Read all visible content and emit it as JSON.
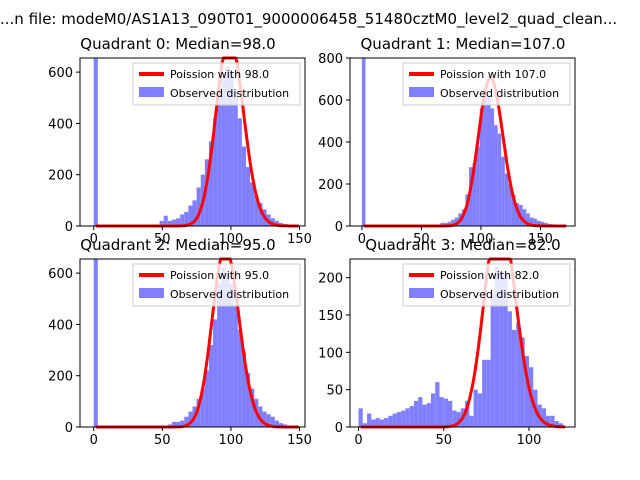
{
  "figure_title": "...n file: modeM0/AS1A13_090T01_9000006458_51480cztM0_level2_quad_clean...",
  "colors": {
    "hist": "#8080ff",
    "poisson": "#ff0000",
    "axes": "#000000"
  },
  "chart_data": [
    {
      "type": "bar",
      "title": "Quadrant 0: Median=98.0",
      "xlim": [
        -10,
        154
      ],
      "ylim": [
        0,
        655
      ],
      "xticks": [
        0,
        50,
        100,
        150
      ],
      "yticks": [
        0,
        200,
        400,
        600
      ],
      "bin_width": 3,
      "series": [
        {
          "name": "Observed distribution",
          "bins_x": [
            0,
            3,
            6,
            9,
            12,
            15,
            18,
            21,
            24,
            27,
            30,
            33,
            36,
            39,
            42,
            45,
            48,
            51,
            54,
            57,
            60,
            63,
            66,
            69,
            72,
            75,
            78,
            81,
            84,
            87,
            90,
            93,
            96,
            99,
            102,
            105,
            108,
            111,
            114,
            117,
            120,
            123,
            126,
            129,
            132,
            135,
            138,
            141,
            144
          ],
          "values": [
            655,
            0,
            0,
            0,
            0,
            0,
            0,
            0,
            0,
            0,
            0,
            0,
            0,
            0,
            0,
            0,
            20,
            40,
            20,
            25,
            30,
            45,
            55,
            80,
            100,
            150,
            200,
            260,
            330,
            420,
            510,
            580,
            620,
            600,
            520,
            420,
            310,
            230,
            170,
            120,
            90,
            65,
            45,
            30,
            20,
            12,
            8,
            5,
            3
          ]
        },
        {
          "name": "Poission with 98.0",
          "lambda": 98.0,
          "x_range": [
            0,
            148
          ]
        }
      ]
    },
    {
      "type": "bar",
      "title": "Quadrant 1: Median=107.0",
      "xlim": [
        -10,
        179
      ],
      "ylim": [
        0,
        800
      ],
      "xticks": [
        0,
        50,
        100,
        150
      ],
      "yticks": [
        0,
        200,
        400,
        600,
        800
      ],
      "bin_width": 3,
      "series": [
        {
          "name": "Observed distribution",
          "bins_x": [
            0,
            3,
            6,
            9,
            12,
            15,
            18,
            21,
            24,
            27,
            30,
            33,
            36,
            39,
            42,
            45,
            48,
            51,
            54,
            57,
            60,
            63,
            66,
            69,
            72,
            75,
            78,
            81,
            84,
            87,
            90,
            93,
            96,
            99,
            102,
            105,
            108,
            111,
            114,
            117,
            120,
            123,
            126,
            129,
            132,
            135,
            138,
            141,
            144,
            147,
            150,
            153,
            156,
            159,
            162,
            165,
            168
          ],
          "values": [
            800,
            0,
            0,
            0,
            0,
            0,
            0,
            0,
            0,
            0,
            0,
            0,
            0,
            0,
            0,
            0,
            0,
            0,
            0,
            0,
            0,
            0,
            15,
            15,
            20,
            30,
            40,
            60,
            80,
            150,
            280,
            300,
            380,
            560,
            620,
            620,
            560,
            480,
            440,
            330,
            250,
            200,
            150,
            110,
            100,
            80,
            60,
            40,
            35,
            25,
            20,
            15,
            10,
            8,
            5,
            3,
            2
          ]
        },
        {
          "name": "Poission with 107.0",
          "lambda": 107.0,
          "x_range": [
            0,
            170
          ]
        }
      ]
    },
    {
      "type": "bar",
      "title": "Quadrant 2: Median=95.0",
      "xlim": [
        -10,
        154
      ],
      "ylim": [
        0,
        655
      ],
      "xticks": [
        0,
        50,
        100,
        150
      ],
      "yticks": [
        0,
        200,
        400,
        600
      ],
      "bin_width": 3,
      "series": [
        {
          "name": "Observed distribution",
          "bins_x": [
            0,
            3,
            6,
            9,
            12,
            15,
            18,
            21,
            24,
            27,
            30,
            33,
            36,
            39,
            42,
            45,
            48,
            51,
            54,
            57,
            60,
            63,
            66,
            69,
            72,
            75,
            78,
            81,
            84,
            87,
            90,
            93,
            96,
            99,
            102,
            105,
            108,
            111,
            114,
            117,
            120,
            123,
            126,
            129,
            132,
            135,
            138,
            141,
            144
          ],
          "values": [
            655,
            0,
            0,
            0,
            0,
            0,
            0,
            0,
            0,
            0,
            0,
            0,
            0,
            0,
            0,
            0,
            0,
            0,
            10,
            20,
            20,
            25,
            40,
            60,
            80,
            110,
            150,
            220,
            320,
            420,
            560,
            620,
            600,
            560,
            470,
            380,
            290,
            210,
            150,
            110,
            80,
            60,
            50,
            40,
            25,
            15,
            10,
            6,
            3
          ]
        },
        {
          "name": "Poission with 95.0",
          "lambda": 95.0,
          "x_range": [
            0,
            148
          ]
        }
      ]
    },
    {
      "type": "bar",
      "title": "Quadrant 3: Median=82.0",
      "xlim": [
        -5,
        127
      ],
      "ylim": [
        0,
        225
      ],
      "xticks": [
        0,
        50,
        100
      ],
      "yticks": [
        0,
        50,
        100,
        150,
        200
      ],
      "bin_width": 2.5,
      "series": [
        {
          "name": "Observed distribution",
          "bins_x": [
            0,
            2.5,
            5,
            7.5,
            10,
            12.5,
            15,
            17.5,
            20,
            22.5,
            25,
            27.5,
            30,
            32.5,
            35,
            37.5,
            40,
            42.5,
            45,
            47.5,
            50,
            52.5,
            55,
            57.5,
            60,
            62.5,
            65,
            67.5,
            70,
            72.5,
            75,
            77.5,
            80,
            82.5,
            85,
            87.5,
            90,
            92.5,
            95,
            97.5,
            100,
            102.5,
            105,
            107.5,
            110,
            112.5,
            115,
            117.5
          ],
          "values": [
            25,
            5,
            18,
            10,
            12,
            10,
            12,
            15,
            18,
            20,
            22,
            25,
            28,
            35,
            40,
            30,
            32,
            45,
            60,
            40,
            38,
            35,
            22,
            20,
            25,
            35,
            15,
            50,
            45,
            90,
            90,
            180,
            215,
            210,
            205,
            155,
            130,
            140,
            120,
            95,
            80,
            50,
            30,
            25,
            15,
            15,
            8,
            5
          ]
        },
        {
          "name": "Poission with 82.0",
          "lambda": 82.0,
          "x_range": [
            0,
            120
          ]
        }
      ]
    }
  ]
}
